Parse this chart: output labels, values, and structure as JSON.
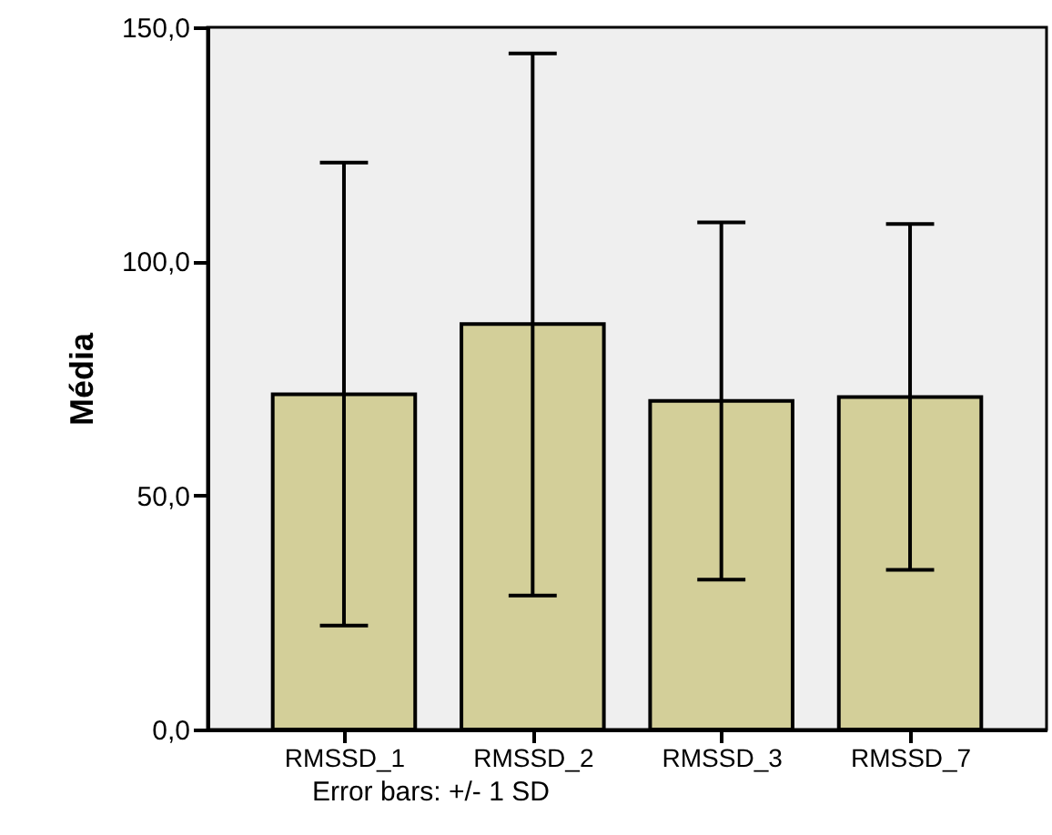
{
  "chart_data": {
    "type": "bar",
    "ylabel": "Média",
    "categories": [
      "RMSSD_1",
      "RMSSD_2",
      "RMSSD_3",
      "RMSSD_7"
    ],
    "values": [
      71.6,
      86.6,
      70.2,
      71.0
    ],
    "errors": [
      [
        22.2,
        121.1
      ],
      [
        28.6,
        144.4
      ],
      [
        32.0,
        108.3
      ],
      [
        34.1,
        108.0
      ]
    ],
    "color": "#d3cf99",
    "ylim": [
      0,
      150
    ],
    "yticks": [
      {
        "value": 0,
        "label": "0,0"
      },
      {
        "value": 50,
        "label": "50,0"
      },
      {
        "value": 100,
        "label": "100,0"
      },
      {
        "value": 150,
        "label": "150,0"
      }
    ],
    "grid": false,
    "annotations": [
      "Error bars: +/- 1 SD"
    ]
  }
}
